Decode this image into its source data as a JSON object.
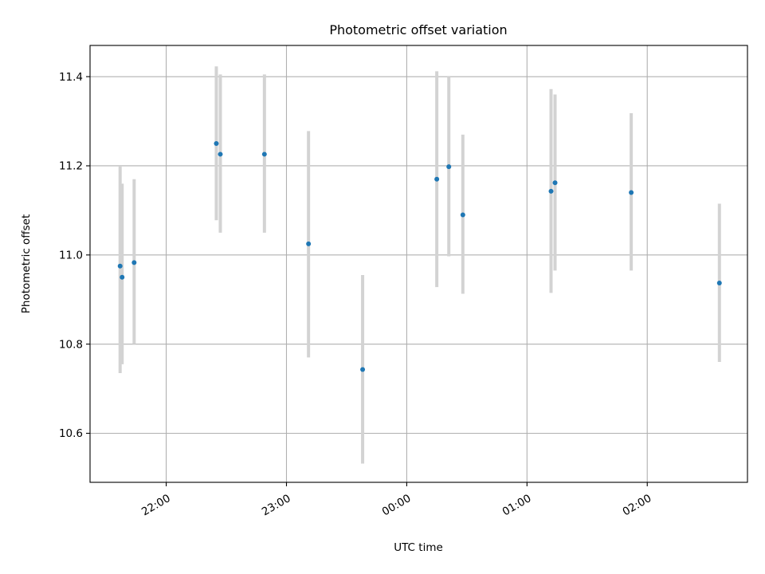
{
  "chart_data": {
    "type": "scatter",
    "title": "Photometric offset variation",
    "xlabel": "UTC time",
    "ylabel": "Photometric offset",
    "x_axis_kind": "time",
    "x_unit": "UTC",
    "xlim": [
      "21:22",
      "02:50"
    ],
    "ylim": [
      10.49,
      11.47
    ],
    "x_ticks": [
      "22:00",
      "23:00",
      "00:00",
      "01:00",
      "02:00"
    ],
    "y_ticks": [
      "10.6",
      "10.8",
      "11.0",
      "11.2",
      "11.4"
    ],
    "grid": true,
    "marker_color": "#1f77b4",
    "errorbar_color": "#d3d3d3",
    "series": [
      {
        "points": [
          {
            "x": "21:37",
            "y": 10.975,
            "yerr_low": 10.735,
            "yerr_high": 11.2
          },
          {
            "x": "21:38",
            "y": 10.95,
            "yerr_low": 10.755,
            "yerr_high": 11.16
          },
          {
            "x": "21:44",
            "y": 10.983,
            "yerr_low": 10.8,
            "yerr_high": 11.17
          },
          {
            "x": "22:25",
            "y": 11.25,
            "yerr_low": 11.078,
            "yerr_high": 11.423
          },
          {
            "x": "22:27",
            "y": 11.226,
            "yerr_low": 11.05,
            "yerr_high": 11.405
          },
          {
            "x": "22:49",
            "y": 11.226,
            "yerr_low": 11.05,
            "yerr_high": 11.405
          },
          {
            "x": "23:11",
            "y": 11.025,
            "yerr_low": 10.77,
            "yerr_high": 11.278
          },
          {
            "x": "23:38",
            "y": 10.743,
            "yerr_low": 10.532,
            "yerr_high": 10.955
          },
          {
            "x": "00:15",
            "y": 11.17,
            "yerr_low": 10.928,
            "yerr_high": 11.412
          },
          {
            "x": "00:21",
            "y": 11.198,
            "yerr_low": 10.997,
            "yerr_high": 11.4
          },
          {
            "x": "00:28",
            "y": 11.09,
            "yerr_low": 10.913,
            "yerr_high": 11.27
          },
          {
            "x": "01:12",
            "y": 11.143,
            "yerr_low": 10.915,
            "yerr_high": 11.372
          },
          {
            "x": "01:14",
            "y": 11.162,
            "yerr_low": 10.965,
            "yerr_high": 11.36
          },
          {
            "x": "01:52",
            "y": 11.14,
            "yerr_low": 10.965,
            "yerr_high": 11.318
          },
          {
            "x": "02:36",
            "y": 10.937,
            "yerr_low": 10.76,
            "yerr_high": 11.115
          }
        ]
      }
    ]
  }
}
